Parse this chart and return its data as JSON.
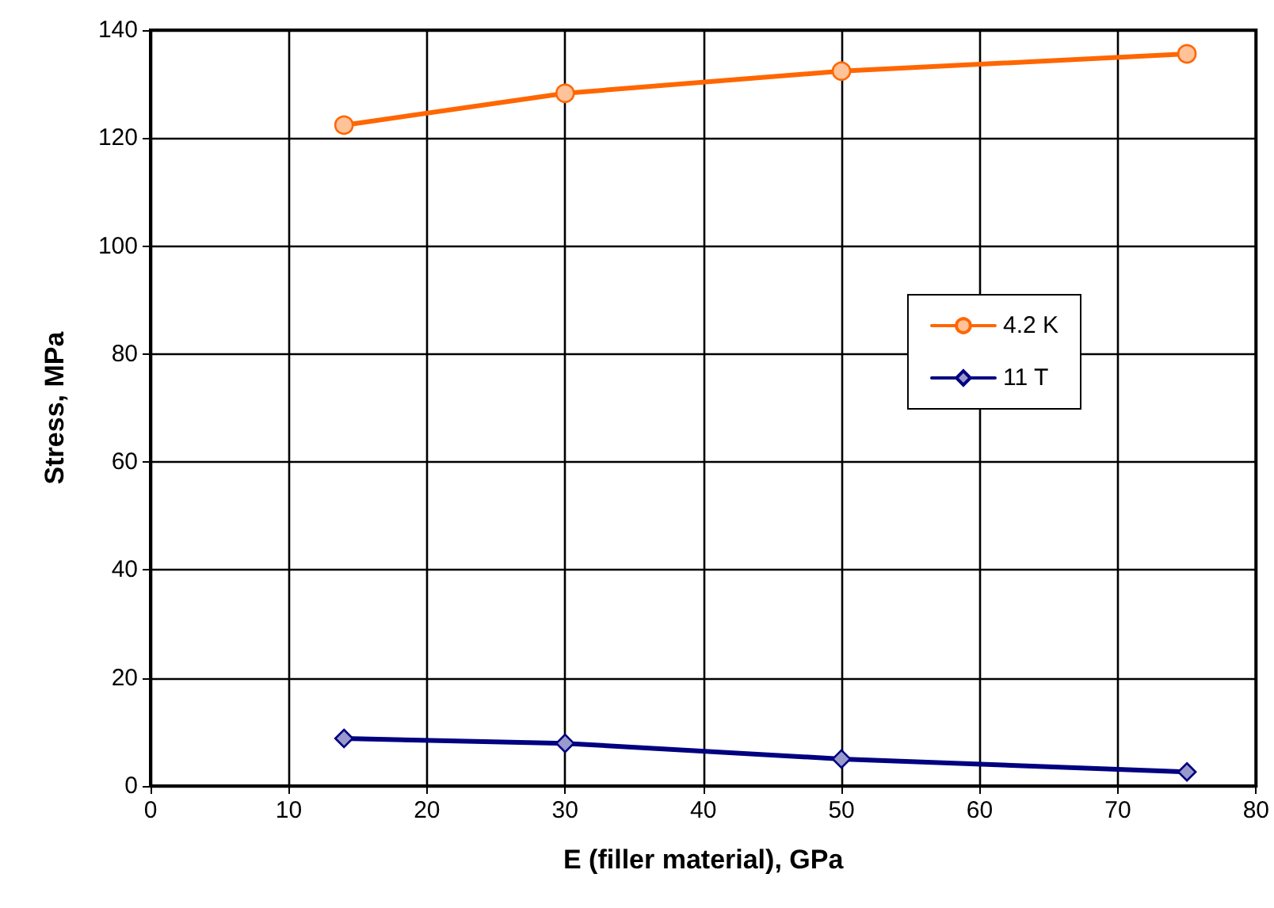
{
  "chart_data": {
    "type": "line",
    "xlabel": "E (filler material), GPa",
    "ylabel": "Stress, MPa",
    "x": [
      14,
      30,
      50,
      75
    ],
    "series": [
      {
        "name": "4.2 K",
        "color": "#ff6600",
        "marker": "circle",
        "values": [
          122.4,
          128.3,
          132.4,
          135.6
        ]
      },
      {
        "name": "11 T",
        "color": "#000080",
        "marker": "diamond",
        "values": [
          8.8,
          7.9,
          5.0,
          2.6
        ]
      }
    ],
    "xlim": [
      0,
      80
    ],
    "xticks": [
      0,
      10,
      20,
      30,
      40,
      50,
      60,
      70,
      80
    ],
    "ylim": [
      0,
      140
    ],
    "yticks": [
      0,
      20,
      40,
      60,
      80,
      100,
      120,
      140
    ],
    "grid": true,
    "legend": "right",
    "line_style": "solid"
  }
}
